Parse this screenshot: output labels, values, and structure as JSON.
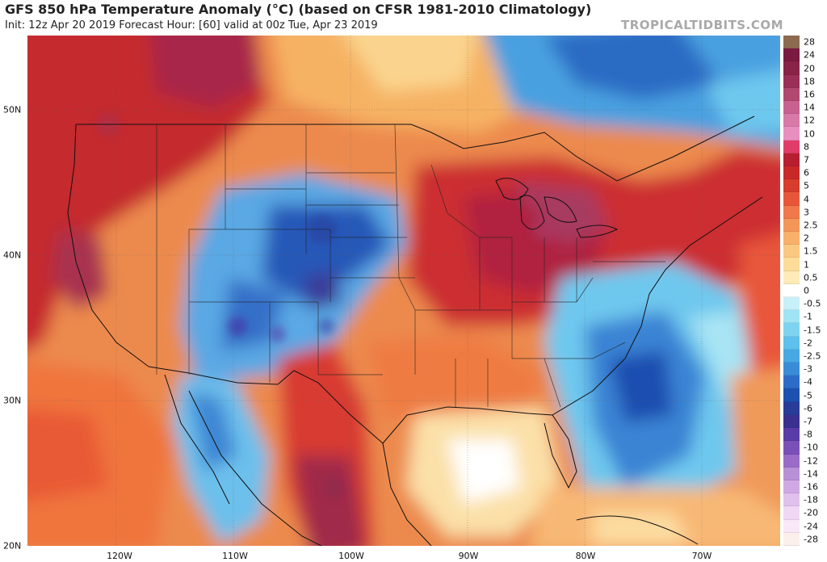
{
  "header": {
    "title": "GFS 850 hPa Temperature Anomaly (°C) (based on CFSR 1981-2010 Climatology)",
    "subtitle": "Init: 12z Apr 20 2019   Forecast Hour: [60]   valid at 00z Tue, Apr 23 2019",
    "credit": "TROPICALTIDBITS.COM"
  },
  "map": {
    "lat_labels": [
      "50N",
      "40N",
      "30N",
      "20N"
    ],
    "lon_labels": [
      "120W",
      "110W",
      "100W",
      "90W",
      "80W",
      "70W"
    ],
    "units": "°C"
  },
  "colorbar": {
    "labels": [
      "28",
      "24",
      "20",
      "18",
      "16",
      "14",
      "12",
      "10",
      "8",
      "7",
      "6",
      "5",
      "4",
      "3",
      "2.5",
      "2",
      "1.5",
      "1",
      "0.5",
      "0",
      "-0.5",
      "-1",
      "-1.5",
      "-2",
      "-2.5",
      "-3",
      "-4",
      "-5",
      "-6",
      "-7",
      "-8",
      "-10",
      "-12",
      "-14",
      "-16",
      "-18",
      "-20",
      "-24",
      "-28"
    ],
    "colors": [
      "#8c6a50",
      "#7a1a40",
      "#8a2348",
      "#9a3058",
      "#b04870",
      "#c86090",
      "#d87aa8",
      "#e88fc0",
      "#e03c6a",
      "#b81e32",
      "#c82828",
      "#d83c2c",
      "#e8563a",
      "#f0784a",
      "#f49658",
      "#f8b06a",
      "#fac880",
      "#fcdc98",
      "#fdebb8",
      "#ffffff",
      "#c8f0f8",
      "#9ee4f4",
      "#7ed4f0",
      "#5ec0ec",
      "#48a8e4",
      "#3a8cd8",
      "#2c6cc8",
      "#1e50b0",
      "#283c98",
      "#3a3090",
      "#5a3ca8",
      "#7a50b8",
      "#9a6cc8",
      "#b890d8",
      "#d0a8e4",
      "#e0c0ec",
      "#f0d8f4",
      "#f8e8f8",
      "#fcf0ec"
    ]
  }
}
